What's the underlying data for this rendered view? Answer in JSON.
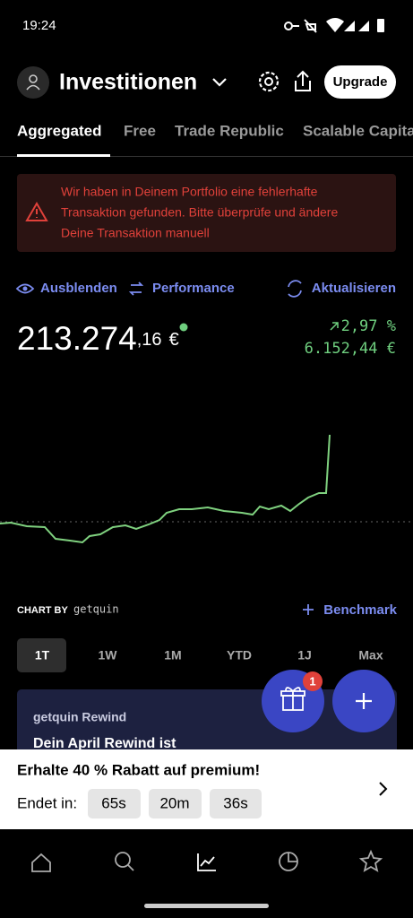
{
  "status_bar": {
    "time": "19:24"
  },
  "header": {
    "title": "Investitionen",
    "upgrade": "Upgrade"
  },
  "tabs": [
    "Aggregated",
    "Free",
    "Trade Republic",
    "Scalable Capital"
  ],
  "alert": {
    "lines": [
      "Wir haben in Deinem Portfolio eine fehlerhafte",
      "Transaktion gefunden. Bitte überprüfe und ändere",
      "Deine Transaktion manuell"
    ]
  },
  "actions": {
    "hide": "Ausblenden",
    "performance": "Performance",
    "refresh": "Aktualisieren"
  },
  "portfolio": {
    "value_main": "213.274",
    "value_decimals": ",16",
    "currency": "€",
    "change_percent": "2,97 %",
    "change_absolute": "6.152,44 €"
  },
  "chart_footer": {
    "chart_by": "CHART BY",
    "provider": "getquin",
    "benchmark": "Benchmark"
  },
  "ranges": [
    "1T",
    "1W",
    "1M",
    "YTD",
    "1J",
    "Max"
  ],
  "card": {
    "label": "getquin Rewind",
    "title": "Dein April Rewind ist"
  },
  "fab": {
    "badge": "1"
  },
  "promo": {
    "title": "Erhalte 40 % Rabatt auf premium!",
    "ends_label": "Endet in:",
    "timers": [
      "65s",
      "20m",
      "36s"
    ]
  }
}
